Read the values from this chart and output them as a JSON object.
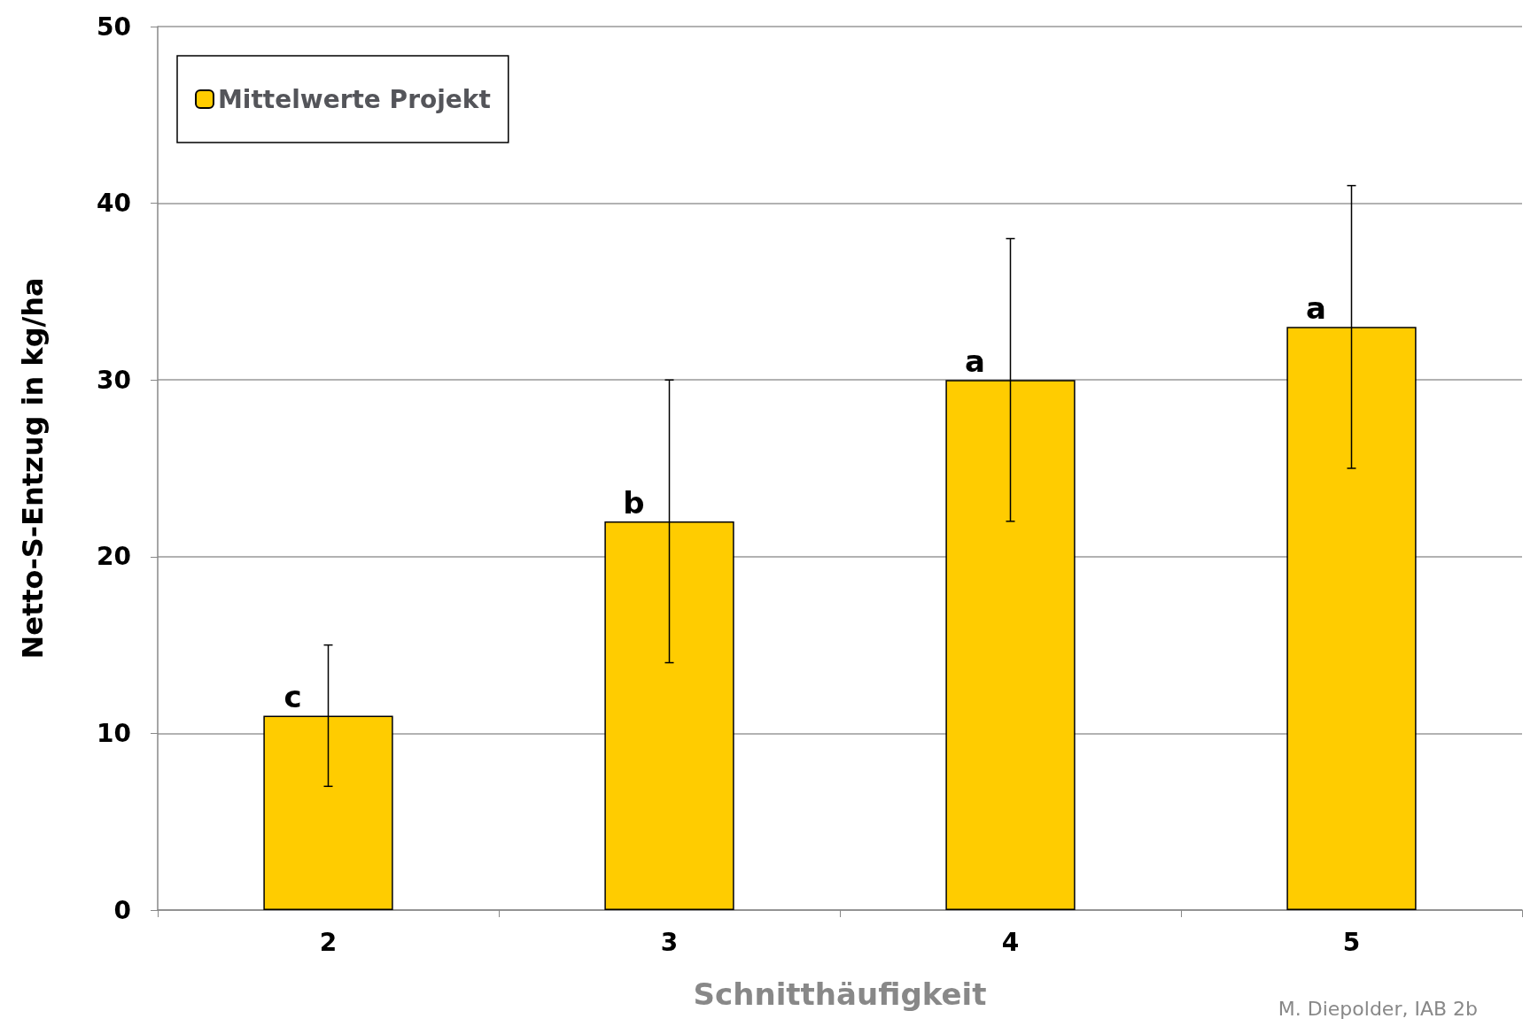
{
  "chart_data": {
    "type": "bar",
    "xlabel": "Schnitthäufigkeit",
    "ylabel": "Netto-S-Entzug in kg/ha",
    "categories": [
      "2",
      "3",
      "4",
      "5"
    ],
    "series": [
      {
        "name": "Mittelwerte Projekt",
        "color": "#ffcc00",
        "values": [
          11,
          22,
          30,
          33
        ],
        "errors": [
          4,
          8,
          8,
          8
        ]
      }
    ],
    "ylim": [
      0,
      50
    ],
    "yticks": [
      0,
      10,
      20,
      30,
      40,
      50
    ],
    "grid": "y",
    "legend": "top left",
    "annotations": [
      {
        "text": "c",
        "x": "2",
        "y": 11
      },
      {
        "text": "b",
        "x": "3",
        "y": 22
      },
      {
        "text": "a",
        "x": "4",
        "y": 30
      },
      {
        "text": "a",
        "x": "5",
        "y": 33
      },
      "M. Diepolder, IAB 2b"
    ]
  }
}
